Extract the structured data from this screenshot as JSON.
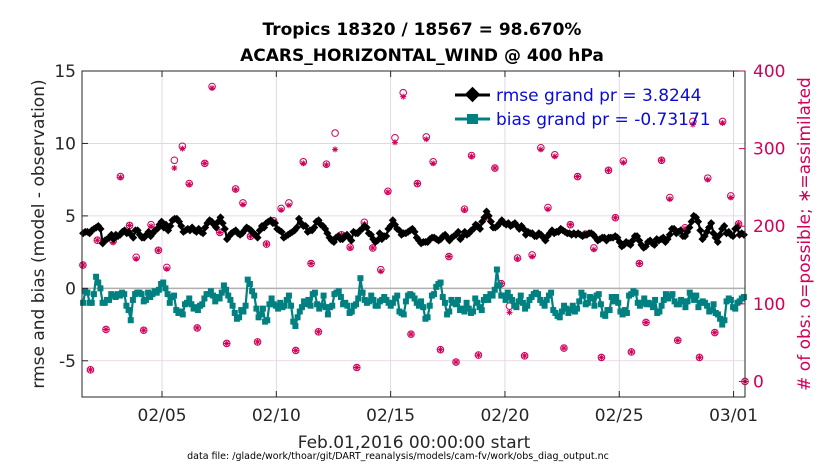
{
  "chart_data": {
    "type": "line",
    "title_line1": "Tropics 18320 / 18567 = 98.670%",
    "title_line2": "ACARS_HORIZONTAL_WIND @ 400 hPa",
    "ylabel_left": "rmse and bias (model - observation)",
    "ylabel_right": "# of obs: o=possible; ∗=assimilated",
    "xlabel": "Feb.01,2016 00:00:00 start",
    "footnote": "data file: /glade/work/thoar/git/DART_reanalysis/models/cam-fv/work/obs_diag_output.nc",
    "x_range_days": [
      1,
      30
    ],
    "ylim_left": [
      -7.5,
      15
    ],
    "ylim_right": [
      -20,
      400
    ],
    "yticks_left": [
      15,
      10,
      5,
      0,
      -5
    ],
    "yticks_left_labels": [
      "15",
      "10",
      "5",
      "0",
      "-5"
    ],
    "yticks_right": [
      400,
      300,
      200,
      100,
      0
    ],
    "yticks_right_labels": [
      "400",
      "300",
      "200",
      "100",
      "0"
    ],
    "xticks": [
      4.5,
      9.5,
      14.5,
      19.5,
      24.5,
      29.5
    ],
    "xtick_labels": [
      "02/05",
      "02/10",
      "02/15",
      "02/20",
      "02/25",
      "03/01"
    ],
    "legend": [
      {
        "label": "rmse grand pr = 3.8244",
        "color": "#000000"
      },
      {
        "label": "bias grand pr = -0.73171",
        "color": "#008080"
      }
    ],
    "colors": {
      "rmse": "#000000",
      "bias": "#008080",
      "obs": "#d1005a",
      "zero_line": "#b0b0b0",
      "grid": "#e3cde0"
    },
    "series": [
      {
        "name": "rmse",
        "values": [
          3.8,
          3.9,
          3.9,
          3.8,
          4.0,
          4.1,
          4.2,
          4.3,
          4.1,
          3.1,
          3.3,
          3.4,
          3.5,
          3.7,
          3.4,
          3.7,
          3.6,
          3.7,
          3.9,
          4.0,
          3.8,
          3.9,
          3.7,
          3.5,
          4.0,
          4.0,
          3.7,
          3.5,
          3.5,
          3.7,
          3.9,
          3.6,
          3.8,
          4.0,
          4.1,
          4.4,
          4.6,
          4.2,
          4.4,
          4.0,
          4.3,
          4.7,
          4.8,
          4.8,
          4.6,
          4.3,
          3.9,
          4.0,
          4.1,
          4.0,
          4.2,
          4.0,
          3.9,
          4.1,
          3.9,
          3.8,
          4.2,
          4.5,
          4.7,
          4.6,
          4.4,
          4.2,
          4.6,
          4.9,
          4.5,
          4.1,
          3.4,
          3.6,
          3.8,
          3.9,
          4.0,
          3.8,
          3.7,
          3.8,
          4.0,
          4.2,
          4.1,
          4.0,
          3.8,
          3.7,
          3.5,
          4.0,
          4.3,
          4.2,
          4.5,
          4.6,
          4.7,
          4.5,
          4.5,
          4.1,
          4.0,
          3.9,
          3.5,
          3.6,
          3.7,
          3.8,
          3.9,
          4.0,
          4.2,
          4.8,
          4.5,
          4.3,
          4.3,
          3.9,
          4.0,
          4.0,
          4.2,
          4.6,
          4.7,
          4.4,
          4.3,
          4.1,
          3.8,
          3.5,
          3.3,
          3.2,
          3.5,
          3.6,
          3.4,
          3.4,
          3.6,
          3.7,
          3.5,
          3.3,
          3.9,
          3.8,
          3.8,
          4.0,
          4.1,
          4.3,
          4.2,
          3.8,
          3.7,
          3.4,
          3.2,
          3.3,
          3.8,
          3.4,
          3.6,
          3.6,
          4.1,
          4.3,
          4.7,
          4.4,
          4.1,
          4.0,
          3.7,
          3.8,
          3.8,
          3.9,
          4.0,
          4.1,
          3.9,
          3.5,
          3.3,
          3.1,
          3.2,
          3.2,
          3.2,
          3.4,
          3.5,
          3.5,
          3.4,
          3.3,
          3.4,
          3.6,
          3.7,
          3.5,
          3.3,
          3.5,
          3.6,
          3.7,
          3.9,
          3.4,
          3.6,
          3.9,
          3.7,
          3.8,
          4.0,
          4.1,
          4.4,
          4.3,
          4.1,
          4.6,
          4.9,
          5.3,
          5.0,
          4.6,
          4.2,
          4.2,
          4.3,
          4.5,
          4.7,
          4.5,
          4.4,
          4.5,
          4.3,
          4.4,
          4.5,
          4.3,
          4.1,
          4.3,
          4.1,
          3.7,
          3.9,
          3.8,
          3.8,
          3.6,
          3.6,
          3.8,
          3.7,
          3.5,
          3.3,
          3.6,
          3.8,
          4.0,
          3.8,
          3.9,
          3.9,
          4.1,
          4.0,
          3.9,
          3.8,
          3.8,
          3.7,
          3.8,
          3.7,
          3.8,
          3.7,
          3.6,
          3.7,
          3.7,
          3.8,
          3.8,
          3.7,
          3.5,
          3.3,
          3.4,
          3.5,
          3.5,
          3.3,
          3.5,
          3.5,
          3.5,
          3.6,
          3.5,
          3.2,
          2.9,
          3.0,
          3.2,
          3.1,
          3.0,
          3.3,
          3.6,
          3.6,
          3.3,
          3.0,
          2.8,
          2.9,
          3.2,
          3.3,
          3.1,
          3.0,
          3.4,
          3.3,
          3.4,
          3.5,
          3.2,
          3.4,
          3.7,
          4.1,
          4.1,
          3.8,
          3.9,
          4.0,
          3.6,
          3.6,
          3.9,
          4.2,
          4.6,
          5.0,
          4.9,
          4.6,
          4.0,
          3.4,
          3.6,
          3.9,
          4.2,
          4.5,
          3.8,
          3.5,
          3.2,
          3.7,
          4.1,
          4.3,
          3.8,
          3.9,
          3.7,
          3.6,
          4.1,
          4.2,
          3.7,
          3.8,
          3.7
        ]
      },
      {
        "name": "bias",
        "values": [
          -1.0,
          -0.2,
          -0.3,
          -1.0,
          -1.0,
          -0.4,
          0.8,
          0.4,
          0.0,
          -1.0,
          -1.0,
          -0.8,
          -0.8,
          -0.4,
          -0.5,
          -0.6,
          -0.4,
          -0.5,
          -0.3,
          -0.4,
          -1.2,
          -1.5,
          -2.2,
          -0.8,
          -0.4,
          -0.3,
          -0.3,
          -0.4,
          -0.9,
          -0.8,
          -0.3,
          -0.6,
          -0.4,
          -0.2,
          -0.3,
          -0.1,
          0.3,
          0.4,
          0.0,
          -0.4,
          -1.0,
          -0.6,
          -0.5,
          -1.5,
          -1.7,
          -1.6,
          -1.8,
          -1.1,
          -1.0,
          -0.7,
          -1.1,
          -1.4,
          -1.3,
          -1.5,
          -1.2,
          -1.1,
          -0.7,
          -0.4,
          -0.4,
          -0.2,
          -0.5,
          -0.9,
          -0.6,
          -0.7,
          -0.3,
          0.2,
          -0.1,
          -0.5,
          -0.8,
          -1.2,
          -1.7,
          -2.1,
          -2.0,
          -1.5,
          -1.6,
          -1.2,
          0.6,
          0.3,
          -0.2,
          -0.5,
          -1.4,
          -2.0,
          -1.8,
          -1.4,
          -2.3,
          -2.2,
          -1.1,
          -0.7,
          -1.1,
          -1.2,
          -1.4,
          -1.0,
          -1.3,
          -1.2,
          -0.8,
          -0.5,
          -1.2,
          -2.3,
          -2.6,
          -2.0,
          -1.6,
          -1.3,
          -0.9,
          -1.1,
          -0.8,
          -1.2,
          -0.4,
          -0.3,
          -1.1,
          -1.4,
          -1.2,
          -0.5,
          -1.3,
          -1.8,
          -1.3,
          -1.2,
          -0.4,
          -0.3,
          -0.2,
          -0.6,
          -1.1,
          -1.0,
          -1.2,
          -1.7,
          -1.6,
          -1.2,
          -1.1,
          -0.7,
          0.7,
          -0.3,
          -0.8,
          -1.0,
          -0.9,
          -0.5,
          -0.8,
          -1.2,
          -1.2,
          -0.9,
          -0.8,
          -0.6,
          -0.8,
          -1.0,
          -1.2,
          -1.0,
          -0.7,
          -0.5,
          -1.6,
          -1.7,
          -1.8,
          -0.9,
          -0.5,
          -0.4,
          -0.5,
          -0.7,
          -1.0,
          -1.2,
          -0.9,
          -1.3,
          -2.1,
          -2.0,
          -1.2,
          -0.5,
          -0.4,
          0.1,
          0.3,
          0.4,
          -0.6,
          -1.0,
          -1.8,
          -1.6,
          -0.8,
          -1.0,
          -1.1,
          -0.8,
          -1.5,
          -1.4,
          -1.6,
          -1.0,
          -1.4,
          -1.7,
          -1.6,
          -0.7,
          -1.0,
          -1.3,
          -1.5,
          -0.8,
          -0.6,
          -0.8,
          -0.4,
          -0.5,
          -0.1,
          1.3,
          0.2,
          -0.5,
          -0.5,
          -0.8,
          -0.3,
          -0.6,
          -0.8,
          -1.2,
          -1.3,
          -0.9,
          -0.5,
          -1.0,
          -1.4,
          -1.2,
          -0.8,
          -0.6,
          -0.4,
          -0.3,
          -0.4,
          -0.8,
          -1.0,
          -1.2,
          -0.8,
          -0.5,
          -0.3,
          -1.5,
          -1.7,
          -1.9,
          -2.0,
          -1.6,
          -1.2,
          -1.4,
          -1.7,
          -1.5,
          -1.2,
          -1.6,
          -1.4,
          -0.9,
          -0.3,
          -0.5,
          -1.1,
          -1.0,
          -0.6,
          -0.7,
          -1.2,
          -0.5,
          -0.4,
          -1.1,
          -1.8,
          -1.9,
          -1.5,
          -1.5,
          -0.6,
          -0.9,
          -0.6,
          -1.0,
          -1.6,
          -1.8,
          -1.5,
          -1.7,
          -0.5,
          -0.4,
          -0.2,
          -0.3,
          -1.0,
          -1.2,
          -1.0,
          -0.7,
          -1.1,
          -1.0,
          -1.1,
          -1.3,
          -0.8,
          -1.7,
          -1.6,
          -1.2,
          -0.8,
          -0.4,
          -0.7,
          -0.5,
          -0.4,
          -0.9,
          -1.1,
          -1.1,
          -0.8,
          -0.9,
          -1.3,
          -0.9,
          -0.3,
          -0.5,
          -0.8,
          -0.5,
          -1.3,
          -1.0,
          -0.9,
          -1.0,
          -1.2,
          -1.6,
          -1.5,
          -1.1,
          -1.7,
          -1.8,
          -2.1,
          -2.5,
          -2.2,
          -0.9,
          -0.7,
          -0.8,
          -1.3,
          -1.4,
          -1.0,
          -0.9,
          -0.7,
          -0.6
        ]
      },
      {
        "name": "obs_possible",
        "x": [
          1.04,
          1.37,
          1.67,
          2.05,
          2.36,
          2.68,
          3.08,
          3.37,
          3.7,
          4.02,
          4.34,
          4.71,
          5.04,
          5.39,
          5.69,
          6.04,
          6.37,
          6.69,
          7.03,
          7.33,
          7.72,
          8.04,
          8.37,
          8.68,
          9.07,
          9.38,
          9.71,
          10.05,
          10.35,
          10.68,
          11.02,
          11.34,
          11.69,
          12.07,
          12.35,
          12.73,
          13.02,
          13.35,
          13.72,
          14.07,
          14.38,
          14.69,
          15.05,
          15.39,
          15.67,
          16.06,
          16.36,
          16.68,
          17.05,
          17.36,
          17.73,
          18.04,
          18.34,
          18.69,
          19.06,
          19.34,
          19.7,
          20.05,
          20.36,
          20.69,
          21.07,
          21.38,
          21.68,
          22.08,
          22.36,
          22.68,
          23.02,
          23.39,
          23.72,
          24.03,
          24.33,
          24.68,
          25.03,
          25.38,
          25.67,
          26.01,
          26.35,
          26.71,
          27.06,
          27.38,
          27.72,
          28.01,
          28.37,
          28.68,
          29.02,
          29.38,
          29.72,
          30.0
        ],
        "values": [
          150,
          15,
          182,
          67,
          181,
          264,
          201,
          160,
          66,
          202,
          169,
          147,
          285,
          303,
          255,
          69,
          281,
          380,
          192,
          49,
          248,
          230,
          187,
          51,
          177,
          207,
          223,
          230,
          40,
          283,
          152,
          64,
          280,
          320,
          189,
          173,
          18,
          205,
          172,
          144,
          245,
          314,
          372,
          61,
          255,
          315,
          283,
          41,
          161,
          25,
          222,
          291,
          34,
          212,
          275,
          126,
          97,
          159,
          33,
          163,
          301,
          224,
          292,
          43,
          202,
          264,
          190,
          172,
          31,
          272,
          211,
          284,
          38,
          152,
          76,
          178,
          285,
          237,
          53,
          198,
          335,
          31,
          262,
          63,
          335,
          239,
          203,
          0
        ]
      },
      {
        "name": "obs_assimilated",
        "x": [
          1.04,
          1.37,
          1.67,
          2.05,
          2.36,
          2.68,
          3.08,
          3.37,
          3.7,
          4.02,
          4.34,
          4.71,
          5.04,
          5.39,
          5.69,
          6.04,
          6.37,
          6.69,
          7.03,
          7.33,
          7.72,
          8.04,
          8.37,
          8.68,
          9.07,
          9.38,
          9.71,
          10.05,
          10.35,
          10.68,
          11.02,
          11.34,
          11.69,
          12.07,
          12.35,
          12.73,
          13.02,
          13.35,
          13.72,
          14.07,
          14.38,
          14.69,
          15.05,
          15.39,
          15.67,
          16.06,
          16.36,
          16.68,
          17.05,
          17.36,
          17.73,
          18.04,
          18.34,
          18.69,
          19.06,
          19.34,
          19.7,
          20.05,
          20.36,
          20.69,
          21.07,
          21.38,
          21.68,
          22.08,
          22.36,
          22.68,
          23.02,
          23.39,
          23.72,
          24.03,
          24.33,
          24.68,
          25.03,
          25.38,
          25.67,
          26.01,
          26.35,
          26.71,
          27.06,
          27.38,
          27.72,
          28.01,
          28.37,
          28.68,
          29.02,
          29.38,
          29.72,
          30.0
        ],
        "values": [
          150,
          15,
          182,
          67,
          179,
          263,
          201,
          158,
          66,
          200,
          169,
          145,
          275,
          300,
          254,
          69,
          281,
          378,
          192,
          49,
          247,
          228,
          187,
          51,
          177,
          206,
          221,
          227,
          40,
          281,
          152,
          64,
          279,
          299,
          189,
          172,
          18,
          203,
          172,
          142,
          244,
          308,
          367,
          61,
          255,
          312,
          281,
          41,
          161,
          25,
          221,
          290,
          34,
          212,
          275,
          126,
          89,
          158,
          33,
          161,
          299,
          222,
          290,
          43,
          202,
          264,
          188,
          170,
          31,
          272,
          211,
          282,
          38,
          152,
          76,
          178,
          285,
          235,
          53,
          197,
          331,
          31,
          260,
          63,
          333,
          237,
          203,
          0
        ]
      }
    ]
  }
}
